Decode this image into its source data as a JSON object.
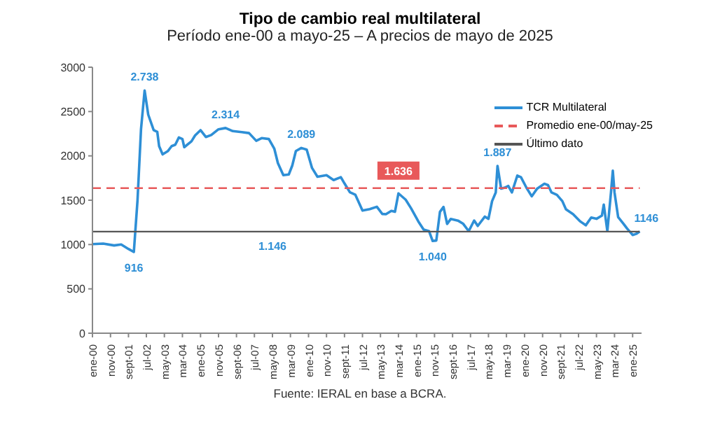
{
  "chart_data": {
    "type": "line",
    "title": "Tipo de cambio real multilateral",
    "subtitle": "Período ene-00 a mayo-25 – A precios de mayo de 2025",
    "x": [
      "2000-01",
      "2000-07",
      "2001-01",
      "2001-05",
      "2001-09",
      "2001-12",
      "2002-02",
      "2002-04",
      "2002-06",
      "2002-08",
      "2002-11",
      "2003-01",
      "2003-02",
      "2003-04",
      "2003-07",
      "2003-09",
      "2003-11",
      "2004-01",
      "2004-03",
      "2004-04",
      "2004-08",
      "2004-10",
      "2005-01",
      "2005-04",
      "2005-07",
      "2005-11",
      "2006-03",
      "2006-07",
      "2006-12",
      "2007-04",
      "2007-08",
      "2007-11",
      "2008-03",
      "2008-06",
      "2008-08",
      "2008-11",
      "2009-02",
      "2009-04",
      "2009-06",
      "2009-09",
      "2009-12",
      "2010-03",
      "2010-06",
      "2010-11",
      "2011-03",
      "2011-07",
      "2011-09",
      "2011-12",
      "2012-03",
      "2012-07",
      "2012-11",
      "2013-03",
      "2013-06",
      "2013-08",
      "2013-11",
      "2014-01",
      "2014-03",
      "2014-07",
      "2014-10",
      "2015-02",
      "2015-05",
      "2015-08",
      "2015-10",
      "2015-12",
      "2016-02",
      "2016-04",
      "2016-06",
      "2016-08",
      "2016-12",
      "2017-03",
      "2017-06",
      "2017-09",
      "2017-11",
      "2018-03",
      "2018-05",
      "2018-07",
      "2018-09",
      "2018-10",
      "2018-12",
      "2019-02",
      "2019-04",
      "2019-06",
      "2019-09",
      "2019-11",
      "2020-02",
      "2020-05",
      "2020-08",
      "2020-12",
      "2021-02",
      "2021-04",
      "2021-07",
      "2021-10",
      "2021-12",
      "2022-04",
      "2022-08",
      "2022-11",
      "2023-02",
      "2023-05",
      "2023-08",
      "2023-09",
      "2023-11",
      "2024-01",
      "2024-02",
      "2024-03",
      "2024-05",
      "2024-08",
      "2024-10",
      "2025-01",
      "2025-03",
      "2025-05"
    ],
    "series": [
      {
        "name": "TCR Multilateral",
        "color": "#2e8fd6",
        "values": [
          1005,
          1010,
          990,
          1000,
          950,
          916,
          1500,
          2300,
          2738,
          2465,
          2290,
          2270,
          2110,
          2017,
          2055,
          2110,
          2126,
          2208,
          2190,
          2098,
          2164,
          2230,
          2290,
          2213,
          2235,
          2300,
          2314,
          2279,
          2268,
          2257,
          2170,
          2200,
          2190,
          2082,
          1918,
          1782,
          1790,
          1891,
          2055,
          2089,
          2071,
          1864,
          1765,
          1782,
          1727,
          1760,
          1689,
          1590,
          1563,
          1383,
          1399,
          1426,
          1345,
          1342,
          1380,
          1369,
          1577,
          1506,
          1408,
          1260,
          1168,
          1150,
          1040,
          1045,
          1369,
          1424,
          1233,
          1288,
          1270,
          1233,
          1151,
          1271,
          1210,
          1315,
          1290,
          1489,
          1587,
          1887,
          1631,
          1642,
          1660,
          1587,
          1778,
          1760,
          1642,
          1544,
          1631,
          1686,
          1670,
          1587,
          1560,
          1489,
          1397,
          1342,
          1260,
          1217,
          1304,
          1290,
          1326,
          1451,
          1151,
          1587,
          1833,
          1587,
          1310,
          1233,
          1179,
          1108,
          1120,
          1146
        ],
        "value_labels": [
          null,
          null,
          null,
          null,
          null,
          "916",
          null,
          null,
          "2.738",
          null,
          null,
          null,
          null,
          null,
          null,
          null,
          null,
          null,
          null,
          null,
          null,
          null,
          null,
          null,
          null,
          null,
          "2.314",
          null,
          null,
          null,
          null,
          null,
          null,
          null,
          null,
          null,
          null,
          null,
          null,
          "2.089",
          null,
          null,
          null,
          null,
          null,
          null,
          null,
          null,
          null,
          null,
          null,
          null,
          null,
          null,
          null,
          null,
          null,
          null,
          null,
          null,
          null,
          null,
          "1.040",
          null,
          null,
          null,
          null,
          null,
          null,
          null,
          null,
          null,
          null,
          null,
          null,
          null,
          null,
          "1.887",
          null,
          null,
          null,
          null,
          null,
          null,
          null,
          null,
          null,
          null,
          null,
          null,
          null,
          null,
          null,
          null,
          null,
          null,
          null,
          null,
          null,
          null,
          null,
          null,
          null,
          null,
          null,
          null,
          null,
          null,
          null,
          "1146"
        ]
      },
      {
        "name": "Promedio ene-00/may-25",
        "color": "#e8595a",
        "line_style": "dashed",
        "x": [
          "2000-01",
          "2025-05"
        ],
        "values": [
          1636,
          1636
        ]
      },
      {
        "name": "Último dato",
        "color": "#555555",
        "x": [
          "2000-01",
          "2025-05"
        ],
        "values": [
          1146,
          1146
        ]
      }
    ],
    "xlim": [
      "2000-01",
      "2025-06"
    ],
    "xticks": [
      {
        "value": "2000-01",
        "label": "ene-00"
      },
      {
        "value": "2000-11",
        "label": "nov-00"
      },
      {
        "value": "2001-09",
        "label": "sept-01"
      },
      {
        "value": "2002-07",
        "label": "jul-02"
      },
      {
        "value": "2003-05",
        "label": "may-03"
      },
      {
        "value": "2004-03",
        "label": "mar-04"
      },
      {
        "value": "2005-01",
        "label": "ene-05"
      },
      {
        "value": "2005-11",
        "label": "nov-05"
      },
      {
        "value": "2006-09",
        "label": "sept-06"
      },
      {
        "value": "2007-07",
        "label": "jul-07"
      },
      {
        "value": "2008-05",
        "label": "may-08"
      },
      {
        "value": "2009-03",
        "label": "mar-09"
      },
      {
        "value": "2010-01",
        "label": "ene-10"
      },
      {
        "value": "2010-11",
        "label": "nov-10"
      },
      {
        "value": "2011-09",
        "label": "sept-11"
      },
      {
        "value": "2012-07",
        "label": "jul-12"
      },
      {
        "value": "2013-05",
        "label": "may-13"
      },
      {
        "value": "2014-03",
        "label": "mar-14"
      },
      {
        "value": "2015-01",
        "label": "ene-15"
      },
      {
        "value": "2015-11",
        "label": "nov-15"
      },
      {
        "value": "2016-09",
        "label": "sept-16"
      },
      {
        "value": "2017-07",
        "label": "jul-17"
      },
      {
        "value": "2018-05",
        "label": "may-18"
      },
      {
        "value": "2019-03",
        "label": "mar-19"
      },
      {
        "value": "2020-01",
        "label": "ene-20"
      },
      {
        "value": "2020-11",
        "label": "nov-20"
      },
      {
        "value": "2021-09",
        "label": "sept-21"
      },
      {
        "value": "2022-07",
        "label": "jul-22"
      },
      {
        "value": "2023-05",
        "label": "may-23"
      },
      {
        "value": "2024-03",
        "label": "mar-24"
      },
      {
        "value": "2025-01",
        "label": "ene-25"
      }
    ],
    "ylim": [
      0,
      3000
    ],
    "yticks": [
      0,
      500,
      1000,
      1500,
      2000,
      2500,
      3000
    ],
    "legend": "top right",
    "annotations": [
      {
        "text": "1.636",
        "x": "2014-03",
        "y": 1636
      },
      {
        "text": "1.146",
        "x": "2008-05",
        "y": 1146
      },
      "Fuente: IERAL en base a BCRA."
    ]
  }
}
